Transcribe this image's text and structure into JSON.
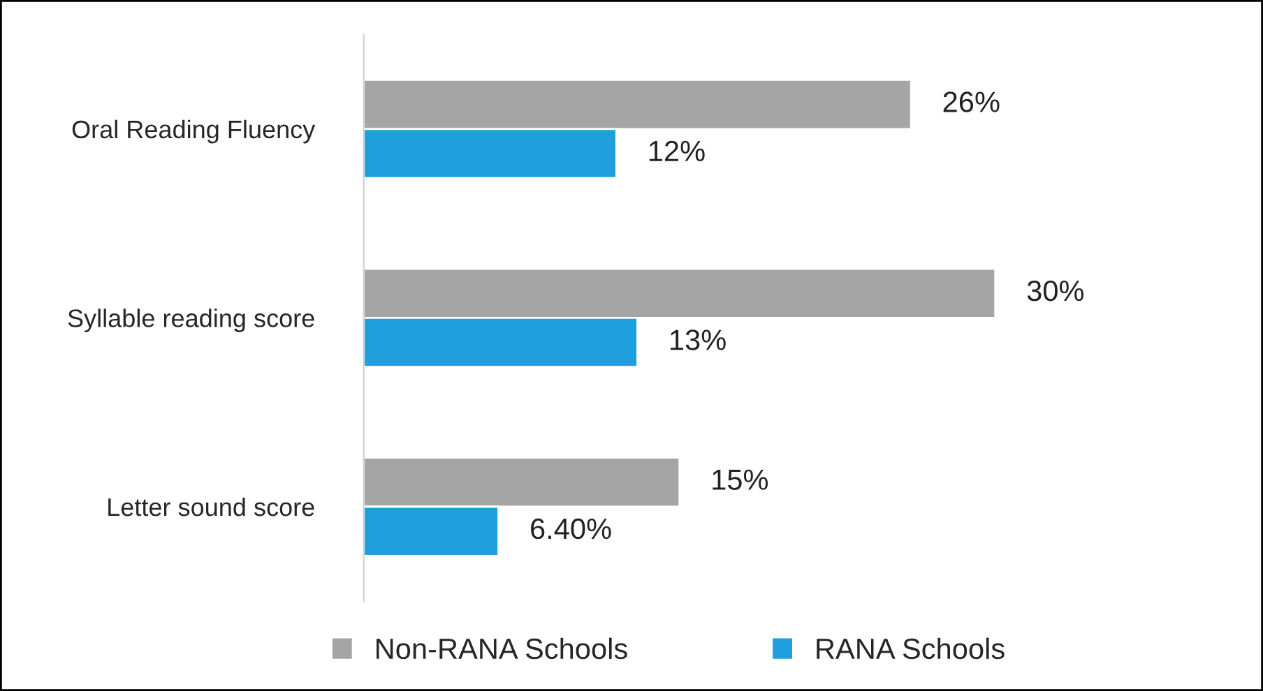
{
  "chart_data": {
    "type": "bar",
    "orientation": "horizontal",
    "categories": [
      "Oral Reading Fluency",
      "Syllable reading score",
      "Letter sound score"
    ],
    "series": [
      {
        "name": "Non-RANA Schools",
        "color": "#a5a5a5",
        "values": [
          26,
          30,
          15
        ],
        "value_labels": [
          "26%",
          "30%",
          "15%"
        ]
      },
      {
        "name": "RANA Schools",
        "color": "#1f9fdc",
        "values": [
          12,
          13,
          6.4
        ],
        "value_labels": [
          "12%",
          "13%",
          "6.40%"
        ]
      }
    ],
    "legend": "bottom",
    "grid": false
  }
}
